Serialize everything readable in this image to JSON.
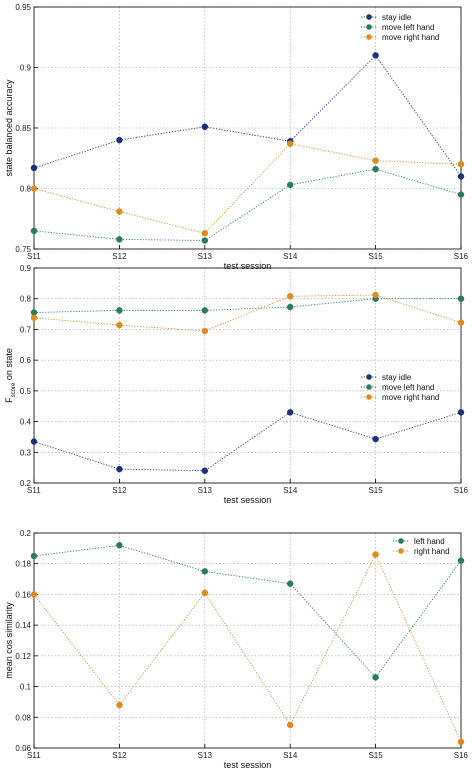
{
  "colors": {
    "stay_idle": "#1f2f7a",
    "left": "#2a7a5c",
    "right": "#e08a1e",
    "grid": "#a0a0a0",
    "axis": "#000000"
  },
  "chart_data": [
    {
      "type": "line",
      "categories": [
        "S11",
        "S12",
        "S13",
        "S14",
        "S15",
        "S16"
      ],
      "ylim": [
        0.75,
        0.95
      ],
      "yticks": [
        0.75,
        0.8,
        0.85,
        0.9,
        0.95
      ],
      "ytick_labels": [
        "0.75",
        "0.8",
        "0.85",
        "0.9",
        "0.95"
      ],
      "xlabel": "test session",
      "ylabel": "state balanced accuracy",
      "grid": true,
      "legend": "top-right",
      "series": [
        {
          "name": "stay idle",
          "color_key": "stay_idle",
          "values": [
            0.817,
            0.84,
            0.851,
            0.839,
            0.91,
            0.81
          ]
        },
        {
          "name": "move left hand",
          "color_key": "left",
          "values": [
            0.765,
            0.758,
            0.757,
            0.803,
            0.816,
            0.795
          ]
        },
        {
          "name": "move right hand",
          "color_key": "right",
          "values": [
            0.8,
            0.781,
            0.763,
            0.837,
            0.823,
            0.82
          ]
        }
      ]
    },
    {
      "type": "line",
      "categories": [
        "S11",
        "S12",
        "S13",
        "S14",
        "S15",
        "S16"
      ],
      "ylim": [
        0.2,
        0.9
      ],
      "yticks": [
        0.2,
        0.3,
        0.4,
        0.5,
        0.6,
        0.7,
        0.8,
        0.9
      ],
      "ytick_labels": [
        "0.2",
        "0.3",
        "0.4",
        "0.5",
        "0.6",
        "0.7",
        "0.8",
        "0.9"
      ],
      "xlabel": "test session",
      "ylabel_main": "F",
      "ylabel_sub": "score",
      "ylabel_rest": " on state",
      "grid": true,
      "legend": "center-right",
      "series": [
        {
          "name": "stay idle",
          "color_key": "stay_idle",
          "values": [
            0.335,
            0.245,
            0.24,
            0.43,
            0.343,
            0.43
          ]
        },
        {
          "name": "move left hand",
          "color_key": "left",
          "values": [
            0.755,
            0.762,
            0.762,
            0.773,
            0.8,
            0.8
          ]
        },
        {
          "name": "move right hand",
          "color_key": "right",
          "values": [
            0.738,
            0.714,
            0.695,
            0.808,
            0.812,
            0.722
          ]
        }
      ]
    },
    {
      "type": "line",
      "categories": [
        "S11",
        "S12",
        "S13",
        "S14",
        "S15",
        "S16"
      ],
      "ylim": [
        0.06,
        0.2
      ],
      "yticks": [
        0.06,
        0.08,
        0.1,
        0.12,
        0.14,
        0.16,
        0.18,
        0.2
      ],
      "ytick_labels": [
        "0.06",
        "0.08",
        "0.1",
        "0.12",
        "0.14",
        "0.16",
        "0.18",
        "0.2"
      ],
      "xlabel": "test session",
      "ylabel": "mean cos similarity",
      "grid": true,
      "legend": "top-right",
      "series": [
        {
          "name": "left hand",
          "color_key": "left",
          "values": [
            0.185,
            0.192,
            0.175,
            0.167,
            0.106,
            0.182
          ]
        },
        {
          "name": "right hand",
          "color_key": "right",
          "values": [
            0.16,
            0.088,
            0.161,
            0.075,
            0.186,
            0.064
          ]
        }
      ]
    }
  ]
}
